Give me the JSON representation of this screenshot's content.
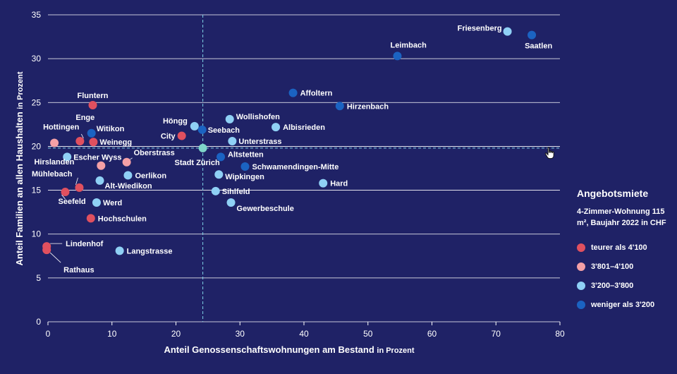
{
  "colors": {
    "background": "#1f2266",
    "text": "#ffffff",
    "grid": "#ffffff",
    "reference": "#7fd3e6",
    "cat_teurer": "#e0505f",
    "cat_mittel": "#f4a0a6",
    "cat_3200": "#8fd0f5",
    "cat_weniger": "#1b63c2",
    "citywide": "#7fd6c9"
  },
  "legend": {
    "title": "Angebotsmiete",
    "subtitle": "4-Zimmer-Wohnung 115 m², Baujahr 2022 in CHF",
    "items": [
      {
        "key": "teurer",
        "label": "teurer als 4'100",
        "color": "#e0505f"
      },
      {
        "key": "mittel",
        "label": "3'801–4'100",
        "color": "#f4a0a6"
      },
      {
        "key": "c3200",
        "label": "3'200–3'800",
        "color": "#8fd0f5"
      },
      {
        "key": "weniger",
        "label": "weniger als 3'200",
        "color": "#1b63c2"
      }
    ]
  },
  "cursor_icon": "hand-pointer-icon",
  "chart_data": {
    "type": "scatter",
    "xlabel": "Anteil Genossenschaftswohnungen am Bestand",
    "xlabel_unit": "in Prozent",
    "ylabel": "Anteil Familien an allen Haushalten",
    "ylabel_unit": "in Prozent",
    "xlim": [
      0,
      80
    ],
    "ylim": [
      0,
      35
    ],
    "xticks": [
      0,
      10,
      20,
      30,
      40,
      50,
      60,
      70,
      80
    ],
    "yticks": [
      0,
      5,
      10,
      15,
      20,
      25,
      30,
      35
    ],
    "grid": "horizontal",
    "legend_position": "right",
    "reference": {
      "x": 24.2,
      "y": 19.8,
      "label": "Stadt Zürich"
    },
    "points": [
      {
        "name": "Friesenberg",
        "x": 71.8,
        "y": 33.1,
        "category": "c3200"
      },
      {
        "name": "Saatlen",
        "x": 75.6,
        "y": 32.7,
        "category": "weniger"
      },
      {
        "name": "Leimbach",
        "x": 54.6,
        "y": 30.3,
        "category": "weniger"
      },
      {
        "name": "Affoltern",
        "x": 38.3,
        "y": 26.1,
        "category": "weniger"
      },
      {
        "name": "Hirzenbach",
        "x": 45.6,
        "y": 24.6,
        "category": "weniger"
      },
      {
        "name": "Wollishofen",
        "x": 28.4,
        "y": 23.1,
        "category": "c3200"
      },
      {
        "name": "Albisrieden",
        "x": 35.6,
        "y": 22.2,
        "category": "c3200"
      },
      {
        "name": "Höngg",
        "x": 22.9,
        "y": 22.3,
        "category": "c3200"
      },
      {
        "name": "Seebach",
        "x": 24.1,
        "y": 21.9,
        "category": "weniger"
      },
      {
        "name": "Unterstrass",
        "x": 28.8,
        "y": 20.6,
        "category": "c3200"
      },
      {
        "name": "City",
        "x": 20.9,
        "y": 21.2,
        "category": "teurer"
      },
      {
        "name": "Altstetten",
        "x": 27.0,
        "y": 18.8,
        "category": "weniger"
      },
      {
        "name": "Schwamendingen-Mitte",
        "x": 30.8,
        "y": 17.7,
        "category": "weniger"
      },
      {
        "name": "Wipkingen",
        "x": 26.7,
        "y": 16.8,
        "category": "c3200"
      },
      {
        "name": "Hard",
        "x": 43.0,
        "y": 15.8,
        "category": "c3200"
      },
      {
        "name": "Sihlfeld",
        "x": 26.2,
        "y": 14.9,
        "category": "c3200"
      },
      {
        "name": "Gewerbeschule",
        "x": 28.6,
        "y": 13.6,
        "category": "c3200"
      },
      {
        "name": "Fluntern",
        "x": 7.0,
        "y": 24.7,
        "category": "teurer"
      },
      {
        "name": "Enge",
        "x": 5.0,
        "y": 20.6,
        "category": "teurer"
      },
      {
        "name": "Witikon",
        "x": 6.8,
        "y": 21.5,
        "category": "weniger"
      },
      {
        "name": "Hottingen",
        "x": 1.0,
        "y": 20.4,
        "category": "mittel"
      },
      {
        "name": "Weinegg",
        "x": 7.1,
        "y": 20.5,
        "category": "teurer"
      },
      {
        "name": "Escher Wyss",
        "x": 3.0,
        "y": 18.8,
        "category": "c3200"
      },
      {
        "name": "Oberstrass",
        "x": 12.3,
        "y": 18.2,
        "category": "mittel"
      },
      {
        "name": "Hirslanden",
        "x": 8.3,
        "y": 17.8,
        "category": "mittel"
      },
      {
        "name": "Oerlikon",
        "x": 12.5,
        "y": 16.7,
        "category": "c3200"
      },
      {
        "name": "Alt-Wiedikon",
        "x": 8.1,
        "y": 16.1,
        "category": "c3200"
      },
      {
        "name": "Mühlebach",
        "x": 4.9,
        "y": 15.3,
        "category": "teurer"
      },
      {
        "name": "Seefeld",
        "x": 2.7,
        "y": 14.8,
        "category": "teurer"
      },
      {
        "name": "Werd",
        "x": 7.6,
        "y": 13.6,
        "category": "c3200"
      },
      {
        "name": "Hochschulen",
        "x": 6.7,
        "y": 11.8,
        "category": "teurer"
      },
      {
        "name": "Lindenhof",
        "x": -0.2,
        "y": 8.6,
        "category": "teurer"
      },
      {
        "name": "Rathaus",
        "x": -0.2,
        "y": 8.2,
        "category": "teurer"
      },
      {
        "name": "Langstrasse",
        "x": 11.2,
        "y": 8.1,
        "category": "c3200"
      }
    ]
  }
}
